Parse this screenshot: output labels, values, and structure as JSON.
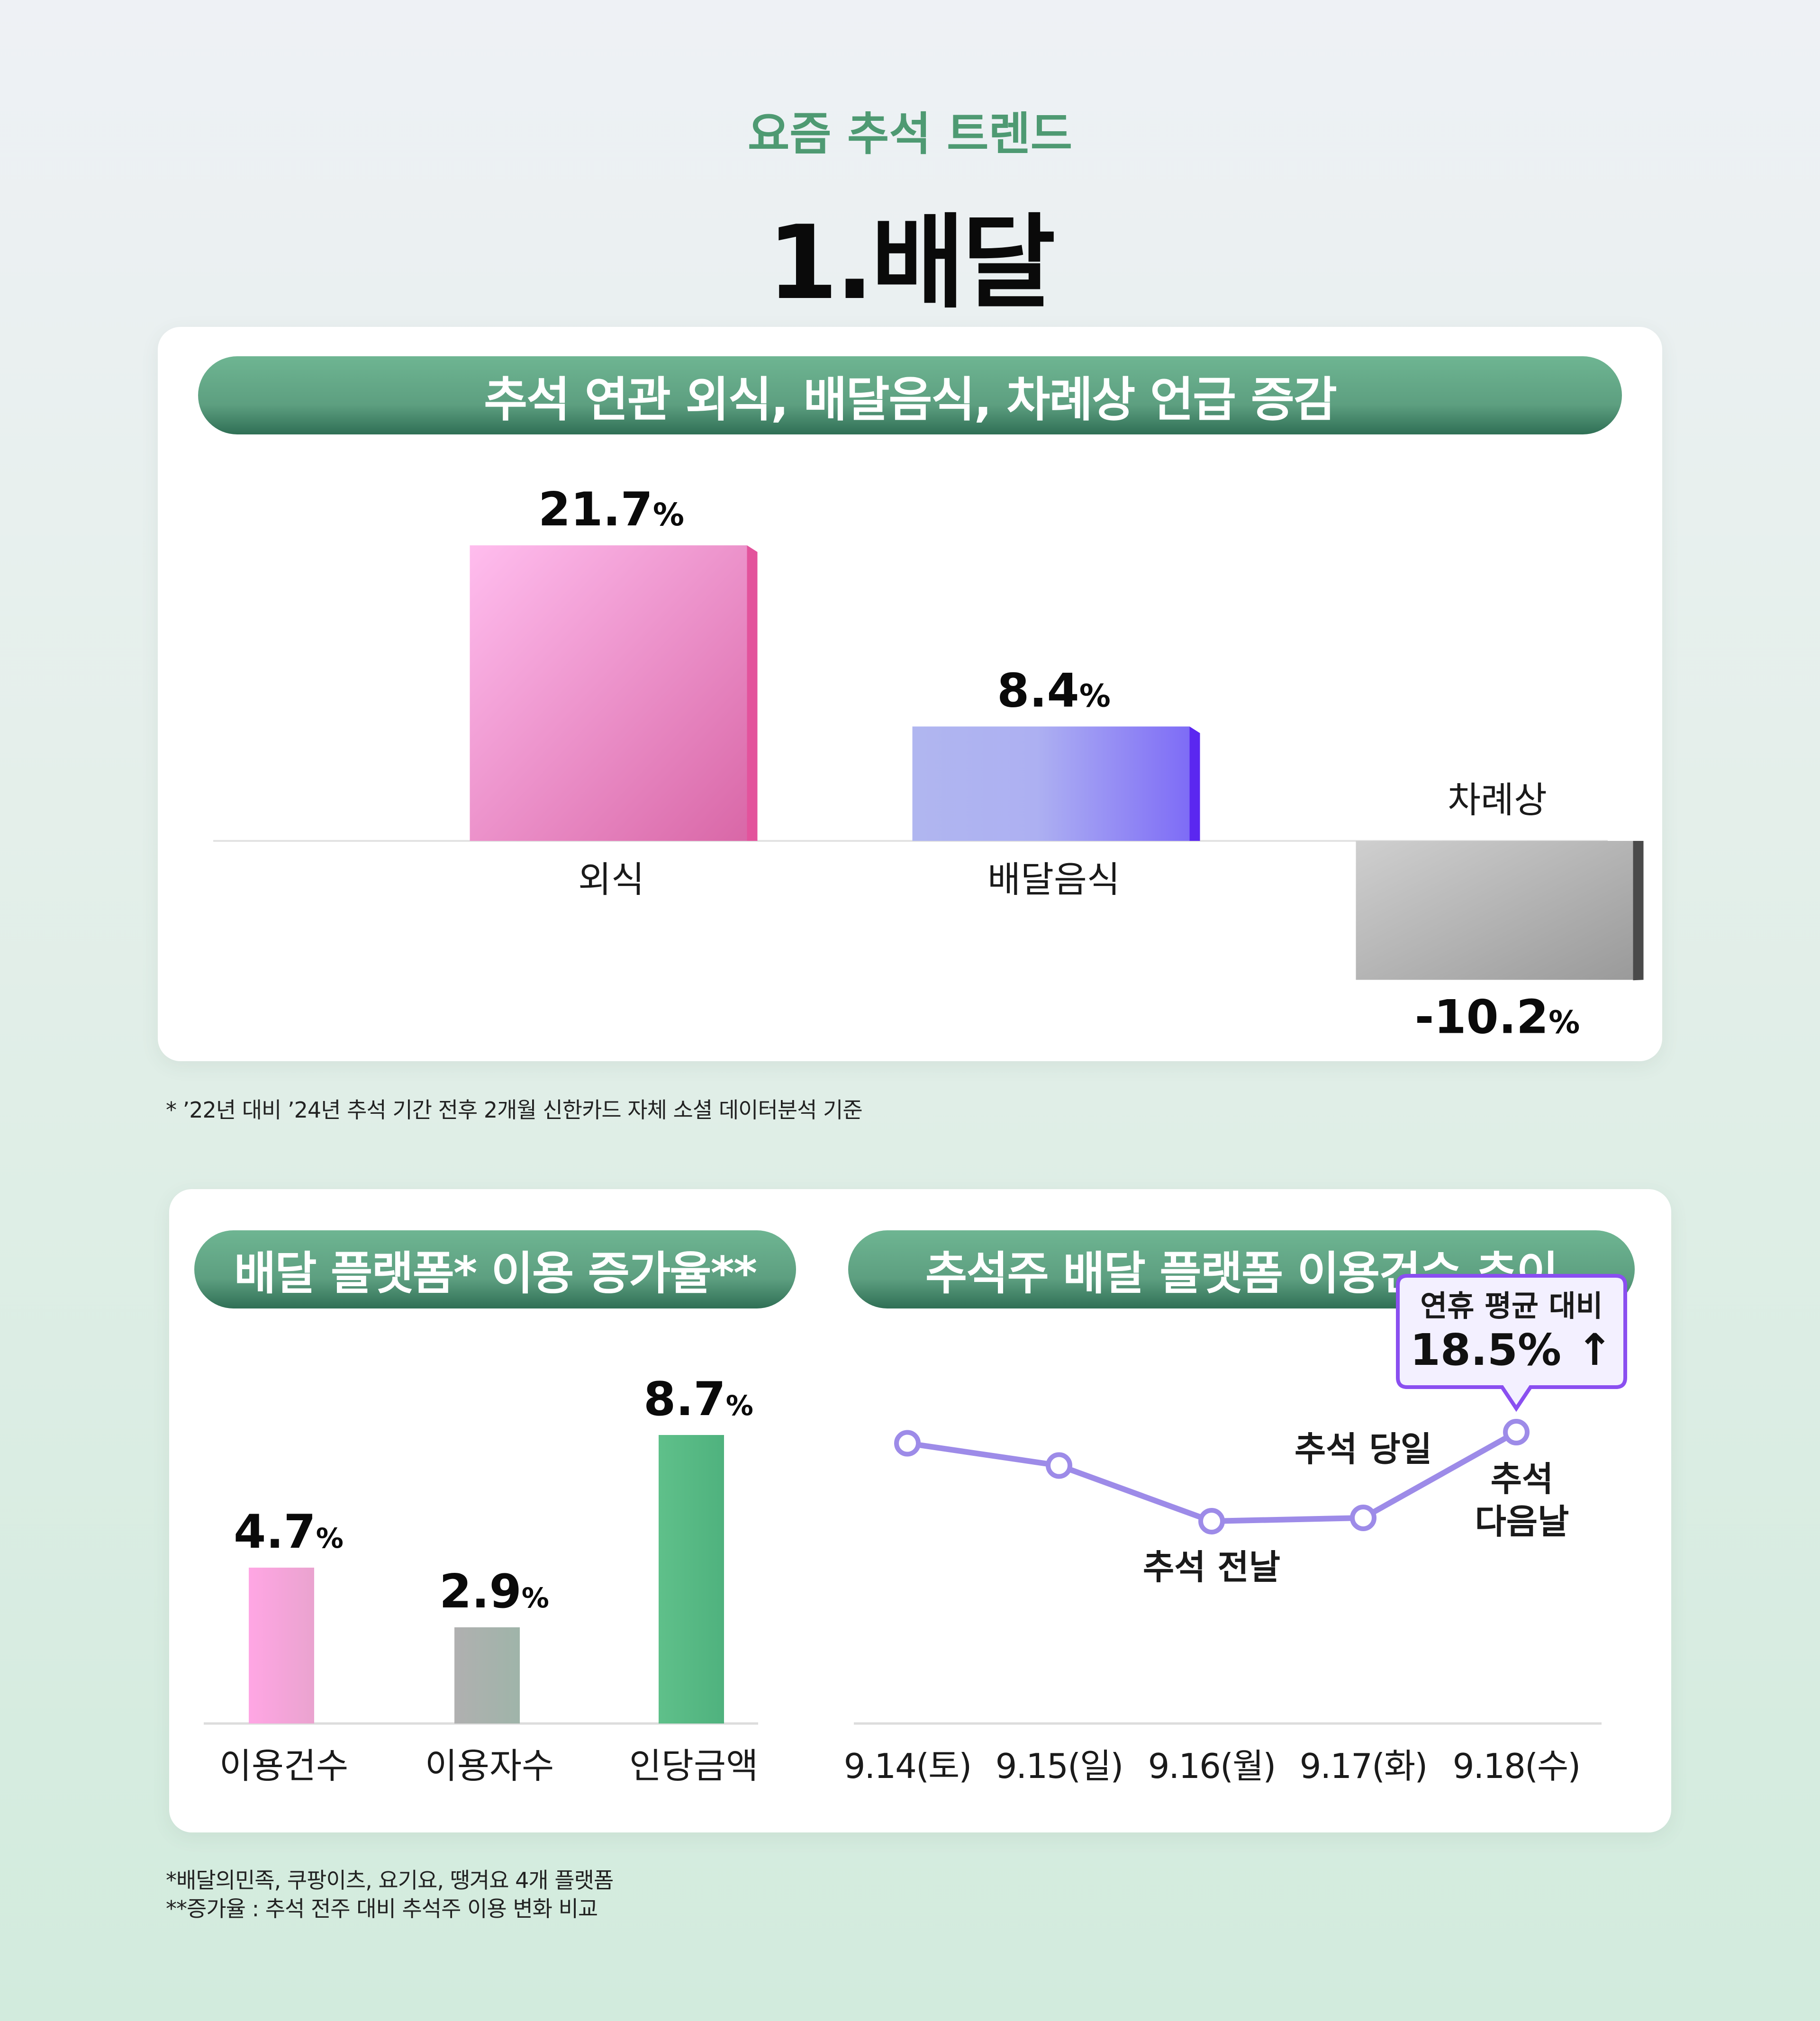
{
  "header": {
    "kicker": "요즘 추석 트렌드",
    "title": "1.배달"
  },
  "notes": {
    "top": "* ’22년 대비 ’24년 추석 기간 전후 2개월 신한카드 자체 소셜 데이터분석 기준",
    "bottom1": "*배달의민족, 쿠팡이츠, 요기요, 땡겨요 4개 플랫폼",
    "bottom2": "**증가율 : 추석 전주 대비 추석주 이용 변화 비교"
  },
  "colors": {
    "accent_green": "#4e9a72",
    "pink": "#e77fb6",
    "purple": "#8d80f4",
    "gray": "#a8a8a8",
    "green_bar": "#55bb85",
    "line": "#9d8be8"
  },
  "chart_data": [
    {
      "type": "bar",
      "title": "추석 연관 외식, 배달음식, 차례상 언급 증감",
      "categories": [
        "외식",
        "배달음식",
        "차례상"
      ],
      "values": [
        21.7,
        8.4,
        -10.2
      ],
      "unit": "%",
      "labels": [
        "21.7",
        "8.4",
        "-10.2"
      ],
      "grid": false
    },
    {
      "type": "bar",
      "title": "배달 플랫폼* 이용 증가율**",
      "categories": [
        "이용건수",
        "이용자수",
        "인당금액"
      ],
      "values": [
        4.7,
        2.9,
        8.7
      ],
      "unit": "%",
      "labels": [
        "4.7",
        "2.9",
        "8.7"
      ],
      "grid": false
    },
    {
      "type": "line",
      "title": "추석주 배달 플랫폼 이용건수 추이",
      "x": [
        "9.14(토)",
        "9.15(일)",
        "9.16(월)",
        "9.17(화)",
        "9.18(수)"
      ],
      "y": [
        103,
        101,
        96,
        96.3,
        104
      ],
      "point_labels": [
        "",
        "",
        "추석 전날",
        "추석 당일",
        "추석\n다음날"
      ],
      "callout": {
        "line1": "연휴 평균 대비",
        "line2": "18.5%",
        "arrow": "↑"
      },
      "grid": false
    }
  ]
}
